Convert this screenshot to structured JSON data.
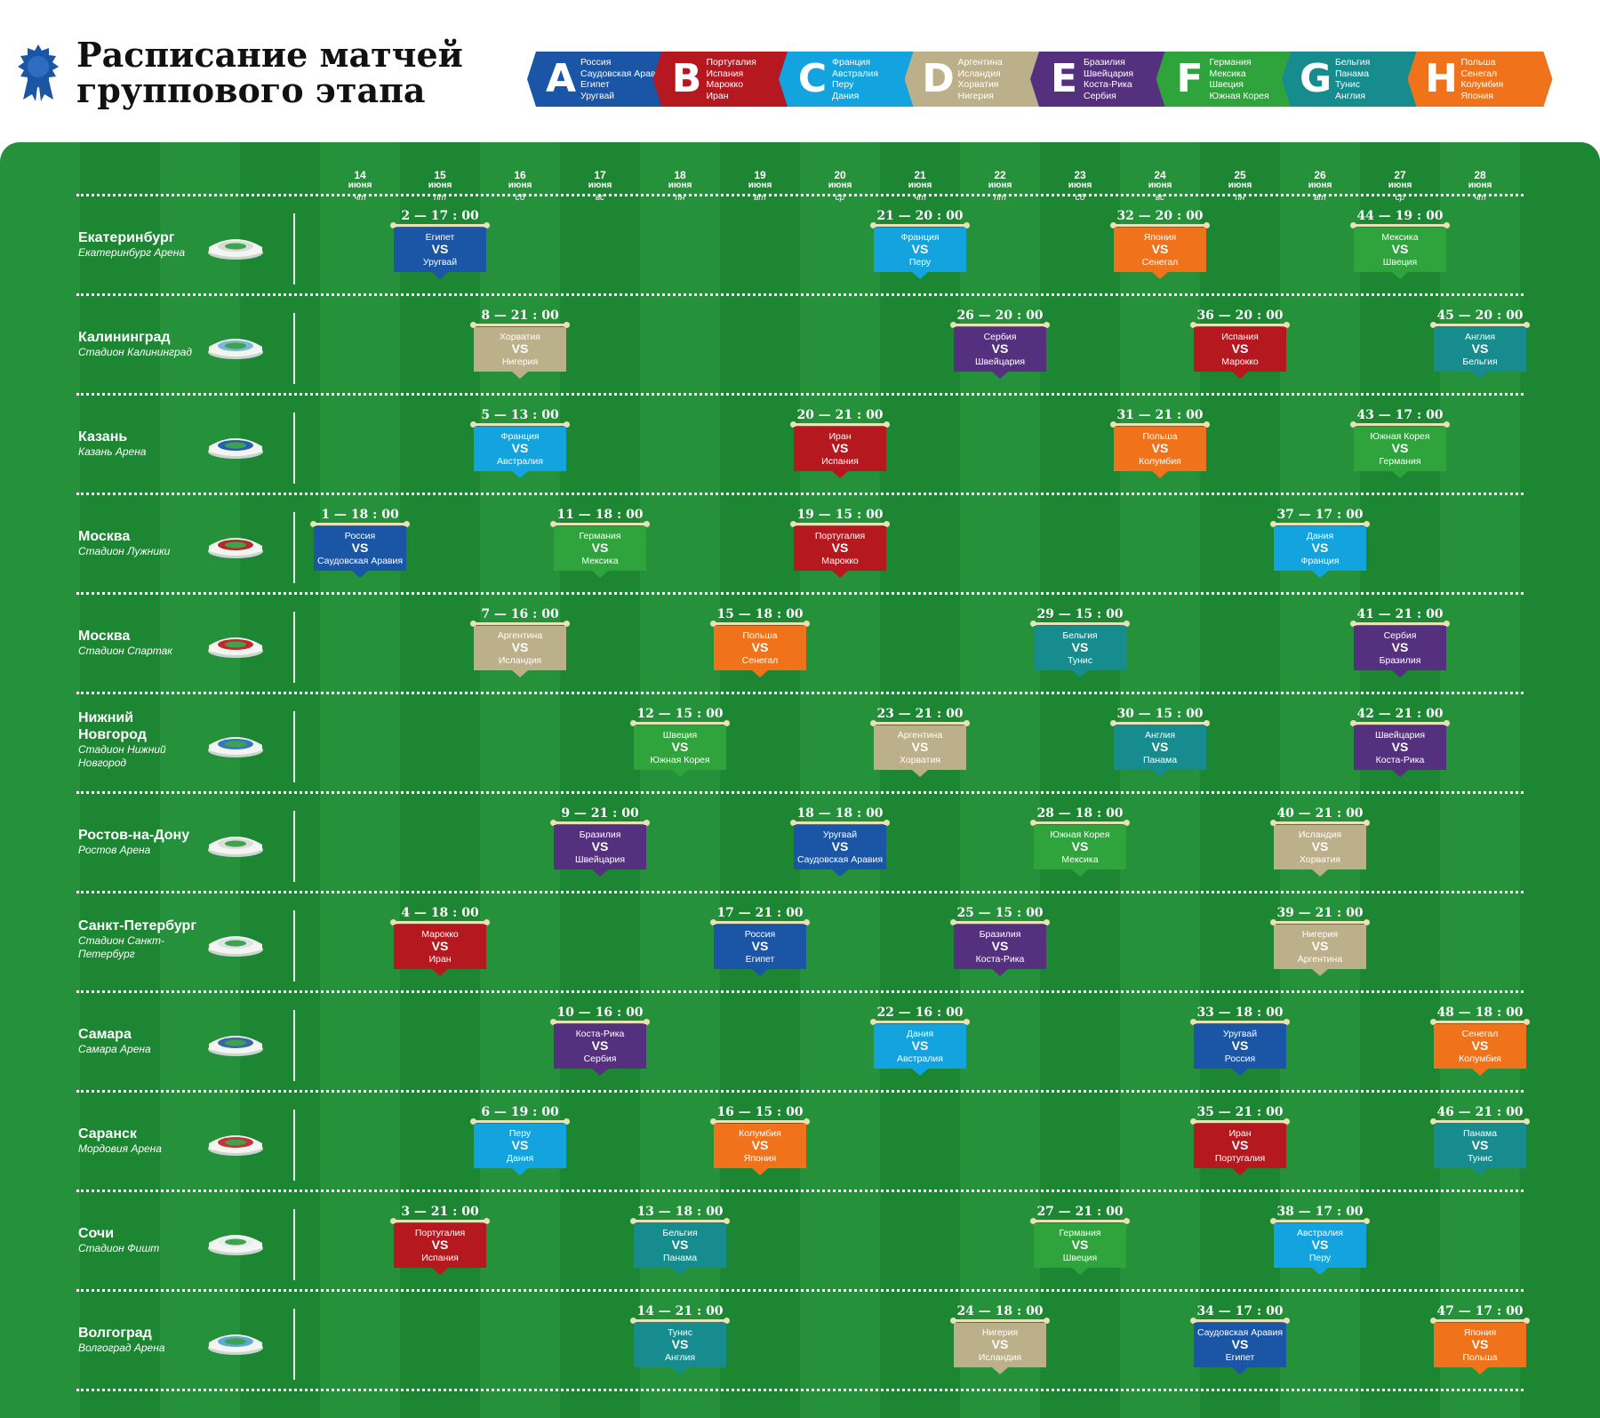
{
  "title_lines": [
    "Расписание матчей",
    "группового этапа"
  ],
  "colors": {
    "A": "#1a55a6",
    "B": "#b5191f",
    "C": "#13a3df",
    "D": "#bcb08a",
    "E": "#55307f",
    "F": "#2fa43c",
    "G": "#178c8e",
    "H": "#f0731c",
    "field": "#25913a",
    "field_dark": "#1c8632"
  },
  "groups": [
    {
      "letter": "A",
      "teams": [
        "Россия",
        "Саудовская Аравия",
        "Египет",
        "Уругвай"
      ]
    },
    {
      "letter": "B",
      "teams": [
        "Португалия",
        "Испания",
        "Марокко",
        "Иран"
      ]
    },
    {
      "letter": "C",
      "teams": [
        "Франция",
        "Австралия",
        "Перу",
        "Дания"
      ]
    },
    {
      "letter": "D",
      "teams": [
        "Аргентина",
        "Исландия",
        "Хорватия",
        "Нигерия"
      ]
    },
    {
      "letter": "E",
      "teams": [
        "Бразилия",
        "Швейцария",
        "Коста-Рика",
        "Сербия"
      ]
    },
    {
      "letter": "F",
      "teams": [
        "Германия",
        "Мексика",
        "Швеция",
        "Южная Корея"
      ]
    },
    {
      "letter": "G",
      "teams": [
        "Бельгия",
        "Панама",
        "Тунис",
        "Англия"
      ]
    },
    {
      "letter": "H",
      "teams": [
        "Польша",
        "Сенегал",
        "Колумбия",
        "Япония"
      ]
    }
  ],
  "days": [
    {
      "d": "14",
      "m": "июня",
      "w": "чт"
    },
    {
      "d": "15",
      "m": "июня",
      "w": "пт"
    },
    {
      "d": "16",
      "m": "июня",
      "w": "сб"
    },
    {
      "d": "17",
      "m": "июня",
      "w": "вс"
    },
    {
      "d": "18",
      "m": "июня",
      "w": "пн"
    },
    {
      "d": "19",
      "m": "июня",
      "w": "вт"
    },
    {
      "d": "20",
      "m": "июня",
      "w": "ср"
    },
    {
      "d": "21",
      "m": "июня",
      "w": "чт"
    },
    {
      "d": "22",
      "m": "июня",
      "w": "пт"
    },
    {
      "d": "23",
      "m": "июня",
      "w": "сб"
    },
    {
      "d": "24",
      "m": "июня",
      "w": "вс"
    },
    {
      "d": "25",
      "m": "июня",
      "w": "пн"
    },
    {
      "d": "26",
      "m": "июня",
      "w": "вт"
    },
    {
      "d": "27",
      "m": "июня",
      "w": "ср"
    },
    {
      "d": "28",
      "m": "июня",
      "w": "чт"
    }
  ],
  "venues": [
    {
      "city": "Екатеринбург",
      "stadium": "Екатеринбург Арена",
      "matches": [
        {
          "day": 1,
          "label": "2 — 17 : 00",
          "group": "A",
          "home": "Египет",
          "away": "Уругвай"
        },
        {
          "day": 7,
          "label": "21 — 20 : 00",
          "group": "C",
          "home": "Франция",
          "away": "Перу"
        },
        {
          "day": 10,
          "label": "32 — 20 : 00",
          "group": "H",
          "home": "Япония",
          "away": "Сенегал"
        },
        {
          "day": 13,
          "label": "44 — 19 : 00",
          "group": "F",
          "home": "Мексика",
          "away": "Швеция"
        }
      ]
    },
    {
      "city": "Калининград",
      "stadium": "Стадион Калининград",
      "matches": [
        {
          "day": 2,
          "label": "8 — 21 : 00",
          "group": "D",
          "home": "Хорватия",
          "away": "Нигерия"
        },
        {
          "day": 8,
          "label": "26 — 20 : 00",
          "group": "E",
          "home": "Сербия",
          "away": "Швейцария"
        },
        {
          "day": 11,
          "label": "36 — 20 : 00",
          "group": "B",
          "home": "Испания",
          "away": "Марокко"
        },
        {
          "day": 14,
          "label": "45 — 20 : 00",
          "group": "G",
          "home": "Англия",
          "away": "Бельгия"
        }
      ]
    },
    {
      "city": "Казань",
      "stadium": "Казань Арена",
      "matches": [
        {
          "day": 2,
          "label": "5 — 13 : 00",
          "group": "C",
          "home": "Франция",
          "away": "Австралия"
        },
        {
          "day": 6,
          "label": "20 — 21 : 00",
          "group": "B",
          "home": "Иран",
          "away": "Испания"
        },
        {
          "day": 10,
          "label": "31 — 21 : 00",
          "group": "H",
          "home": "Польша",
          "away": "Колумбия"
        },
        {
          "day": 13,
          "label": "43 — 17 : 00",
          "group": "F",
          "home": "Южная Корея",
          "away": "Германия"
        }
      ]
    },
    {
      "city": "Москва",
      "stadium": "Стадион Лужники",
      "matches": [
        {
          "day": 0,
          "label": "1 — 18 : 00",
          "group": "A",
          "home": "Россия",
          "away": "Саудовская Аравия"
        },
        {
          "day": 3,
          "label": "11 — 18 : 00",
          "group": "F",
          "home": "Германия",
          "away": "Мексика"
        },
        {
          "day": 6,
          "label": "19 — 15 : 00",
          "group": "B",
          "home": "Португалия",
          "away": "Марокко"
        },
        {
          "day": 12,
          "label": "37 — 17 : 00",
          "group": "C",
          "home": "Дания",
          "away": "Франция"
        }
      ]
    },
    {
      "city": "Москва",
      "stadium": "Стадион Спартак",
      "matches": [
        {
          "day": 2,
          "label": "7 — 16 : 00",
          "group": "D",
          "home": "Аргентина",
          "away": "Исландия"
        },
        {
          "day": 5,
          "label": "15 — 18 : 00",
          "group": "H",
          "home": "Польша",
          "away": "Сенегал"
        },
        {
          "day": 9,
          "label": "29 — 15 : 00",
          "group": "G",
          "home": "Бельгия",
          "away": "Тунис"
        },
        {
          "day": 13,
          "label": "41 — 21 : 00",
          "group": "E",
          "home": "Сербия",
          "away": "Бразилия"
        }
      ]
    },
    {
      "city": "Нижний Новгород",
      "stadium": "Стадион Нижний Новгород",
      "matches": [
        {
          "day": 4,
          "label": "12 — 15 : 00",
          "group": "F",
          "home": "Швеция",
          "away": "Южная Корея"
        },
        {
          "day": 7,
          "label": "23 — 21 : 00",
          "group": "D",
          "home": "Аргентина",
          "away": "Хорватия"
        },
        {
          "day": 10,
          "label": "30 — 15 : 00",
          "group": "G",
          "home": "Англия",
          "away": "Панама"
        },
        {
          "day": 13,
          "label": "42 — 21 : 00",
          "group": "E",
          "home": "Швейцария",
          "away": "Коста-Рика"
        }
      ]
    },
    {
      "city": "Ростов-на-Дону",
      "stadium": "Ростов Арена",
      "matches": [
        {
          "day": 3,
          "label": "9 — 21 : 00",
          "group": "E",
          "home": "Бразилия",
          "away": "Швейцария"
        },
        {
          "day": 6,
          "label": "18 — 18 : 00",
          "group": "A",
          "home": "Уругвай",
          "away": "Саудовская Аравия"
        },
        {
          "day": 9,
          "label": "28 — 18 : 00",
          "group": "F",
          "home": "Южная Корея",
          "away": "Мексика"
        },
        {
          "day": 12,
          "label": "40 — 21 : 00",
          "group": "D",
          "home": "Исландия",
          "away": "Хорватия"
        }
      ]
    },
    {
      "city": "Санкт-Петербург",
      "stadium": "Стадион Санкт-Петербург",
      "matches": [
        {
          "day": 1,
          "label": "4 — 18 : 00",
          "group": "B",
          "home": "Марокко",
          "away": "Иран"
        },
        {
          "day": 5,
          "label": "17 — 21 : 00",
          "group": "A",
          "home": "Россия",
          "away": "Египет"
        },
        {
          "day": 8,
          "label": "25 — 15 : 00",
          "group": "E",
          "home": "Бразилия",
          "away": "Коста-Рика"
        },
        {
          "day": 12,
          "label": "39 — 21 : 00",
          "group": "D",
          "home": "Нигерия",
          "away": "Аргентина"
        }
      ]
    },
    {
      "city": "Самара",
      "stadium": "Самара Арена",
      "matches": [
        {
          "day": 3,
          "label": "10 — 16 : 00",
          "group": "E",
          "home": "Коста-Рика",
          "away": "Сербия"
        },
        {
          "day": 7,
          "label": "22 — 16 : 00",
          "group": "C",
          "home": "Дания",
          "away": "Австралия"
        },
        {
          "day": 11,
          "label": "33 — 18 : 00",
          "group": "A",
          "home": "Уругвай",
          "away": "Россия"
        },
        {
          "day": 14,
          "label": "48 — 18 : 00",
          "group": "H",
          "home": "Сенегал",
          "away": "Колумбия"
        }
      ]
    },
    {
      "city": "Саранск",
      "stadium": "Мордовия Арена",
      "matches": [
        {
          "day": 2,
          "label": "6 — 19 : 00",
          "group": "C",
          "home": "Перу",
          "away": "Дания"
        },
        {
          "day": 5,
          "label": "16 — 15 : 00",
          "group": "H",
          "home": "Колумбия",
          "away": "Япония"
        },
        {
          "day": 11,
          "label": "35 — 21 : 00",
          "group": "B",
          "home": "Иран",
          "away": "Португалия"
        },
        {
          "day": 14,
          "label": "46 — 21 : 00",
          "group": "G",
          "home": "Панама",
          "away": "Тунис"
        }
      ]
    },
    {
      "city": "Сочи",
      "stadium": "Стадион Фишт",
      "matches": [
        {
          "day": 1,
          "label": "3 — 21 : 00",
          "group": "B",
          "home": "Португалия",
          "away": "Испания"
        },
        {
          "day": 4,
          "label": "13 — 18 : 00",
          "group": "G",
          "home": "Бельгия",
          "away": "Панама"
        },
        {
          "day": 9,
          "label": "27 — 21 : 00",
          "group": "F",
          "home": "Германия",
          "away": "Швеция"
        },
        {
          "day": 12,
          "label": "38 — 17 : 00",
          "group": "C",
          "home": "Австралия",
          "away": "Перу"
        }
      ]
    },
    {
      "city": "Волгоград",
      "stadium": "Волгоград Арена",
      "matches": [
        {
          "day": 4,
          "label": "14 — 21 : 00",
          "group": "G",
          "home": "Тунис",
          "away": "Англия"
        },
        {
          "day": 8,
          "label": "24 — 18 : 00",
          "group": "D",
          "home": "Нигерия",
          "away": "Исландия"
        },
        {
          "day": 11,
          "label": "34 — 17 : 00",
          "group": "A",
          "home": "Саудовская Аравия",
          "away": "Египет"
        },
        {
          "day": 14,
          "label": "47 — 17 : 00",
          "group": "H",
          "home": "Япония",
          "away": "Польша"
        }
      ]
    }
  ],
  "vs_label": "VS",
  "icon": "rosette-icon"
}
